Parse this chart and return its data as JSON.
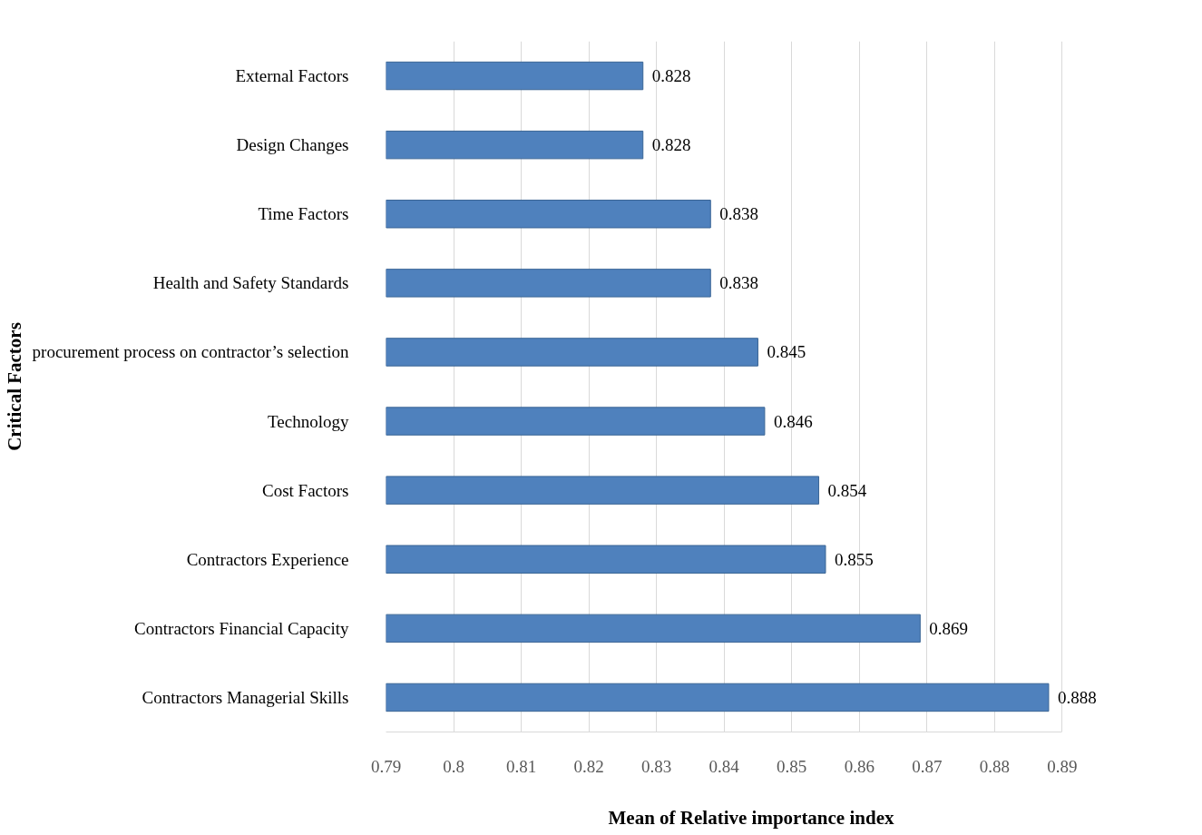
{
  "chart_data": {
    "type": "bar",
    "orientation": "horizontal",
    "xlabel": "Mean of Relative importance index",
    "ylabel": "Critical Factors",
    "categories": [
      "External Factors",
      "Design Changes",
      "Time Factors",
      "Health and Safety Standards",
      "procurement process on contractor’s selection",
      "Technology",
      "Cost Factors",
      "Contractors Experience",
      "Contractors Financial Capacity",
      "Contractors Managerial Skills"
    ],
    "values": [
      0.828,
      0.828,
      0.838,
      0.838,
      0.845,
      0.846,
      0.854,
      0.855,
      0.869,
      0.888
    ],
    "color": "#4f81bd",
    "xlim": [
      0.79,
      0.89
    ],
    "xticks": [
      0.79,
      0.8,
      0.81,
      0.82,
      0.83,
      0.84,
      0.85,
      0.86,
      0.87,
      0.88,
      0.89
    ],
    "grid": "x",
    "data_labels": true
  }
}
